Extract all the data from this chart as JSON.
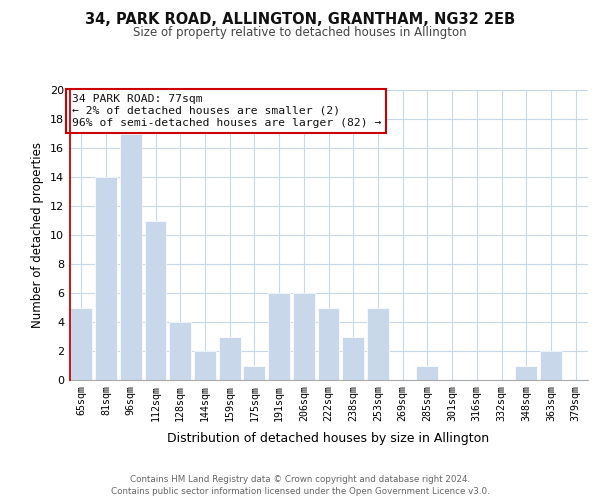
{
  "title1": "34, PARK ROAD, ALLINGTON, GRANTHAM, NG32 2EB",
  "title2": "Size of property relative to detached houses in Allington",
  "xlabel": "Distribution of detached houses by size in Allington",
  "ylabel": "Number of detached properties",
  "categories": [
    "65sqm",
    "81sqm",
    "96sqm",
    "112sqm",
    "128sqm",
    "144sqm",
    "159sqm",
    "175sqm",
    "191sqm",
    "206sqm",
    "222sqm",
    "238sqm",
    "253sqm",
    "269sqm",
    "285sqm",
    "301sqm",
    "316sqm",
    "332sqm",
    "348sqm",
    "363sqm",
    "379sqm"
  ],
  "values": [
    5,
    14,
    17,
    11,
    4,
    2,
    3,
    1,
    6,
    6,
    5,
    3,
    5,
    0,
    1,
    0,
    0,
    0,
    1,
    2,
    0
  ],
  "bar_color": "#c8d8ea",
  "marker_color": "#cc0000",
  "ylim": [
    0,
    20
  ],
  "yticks": [
    0,
    2,
    4,
    6,
    8,
    10,
    12,
    14,
    16,
    18,
    20
  ],
  "annotation_title": "34 PARK ROAD: 77sqm",
  "annotation_line1": "← 2% of detached houses are smaller (2)",
  "annotation_line2": "96% of semi-detached houses are larger (82) →",
  "footer1": "Contains HM Land Registry data © Crown copyright and database right 2024.",
  "footer2": "Contains public sector information licensed under the Open Government Licence v3.0.",
  "bg_color": "#ffffff",
  "grid_color": "#c8d8e8"
}
